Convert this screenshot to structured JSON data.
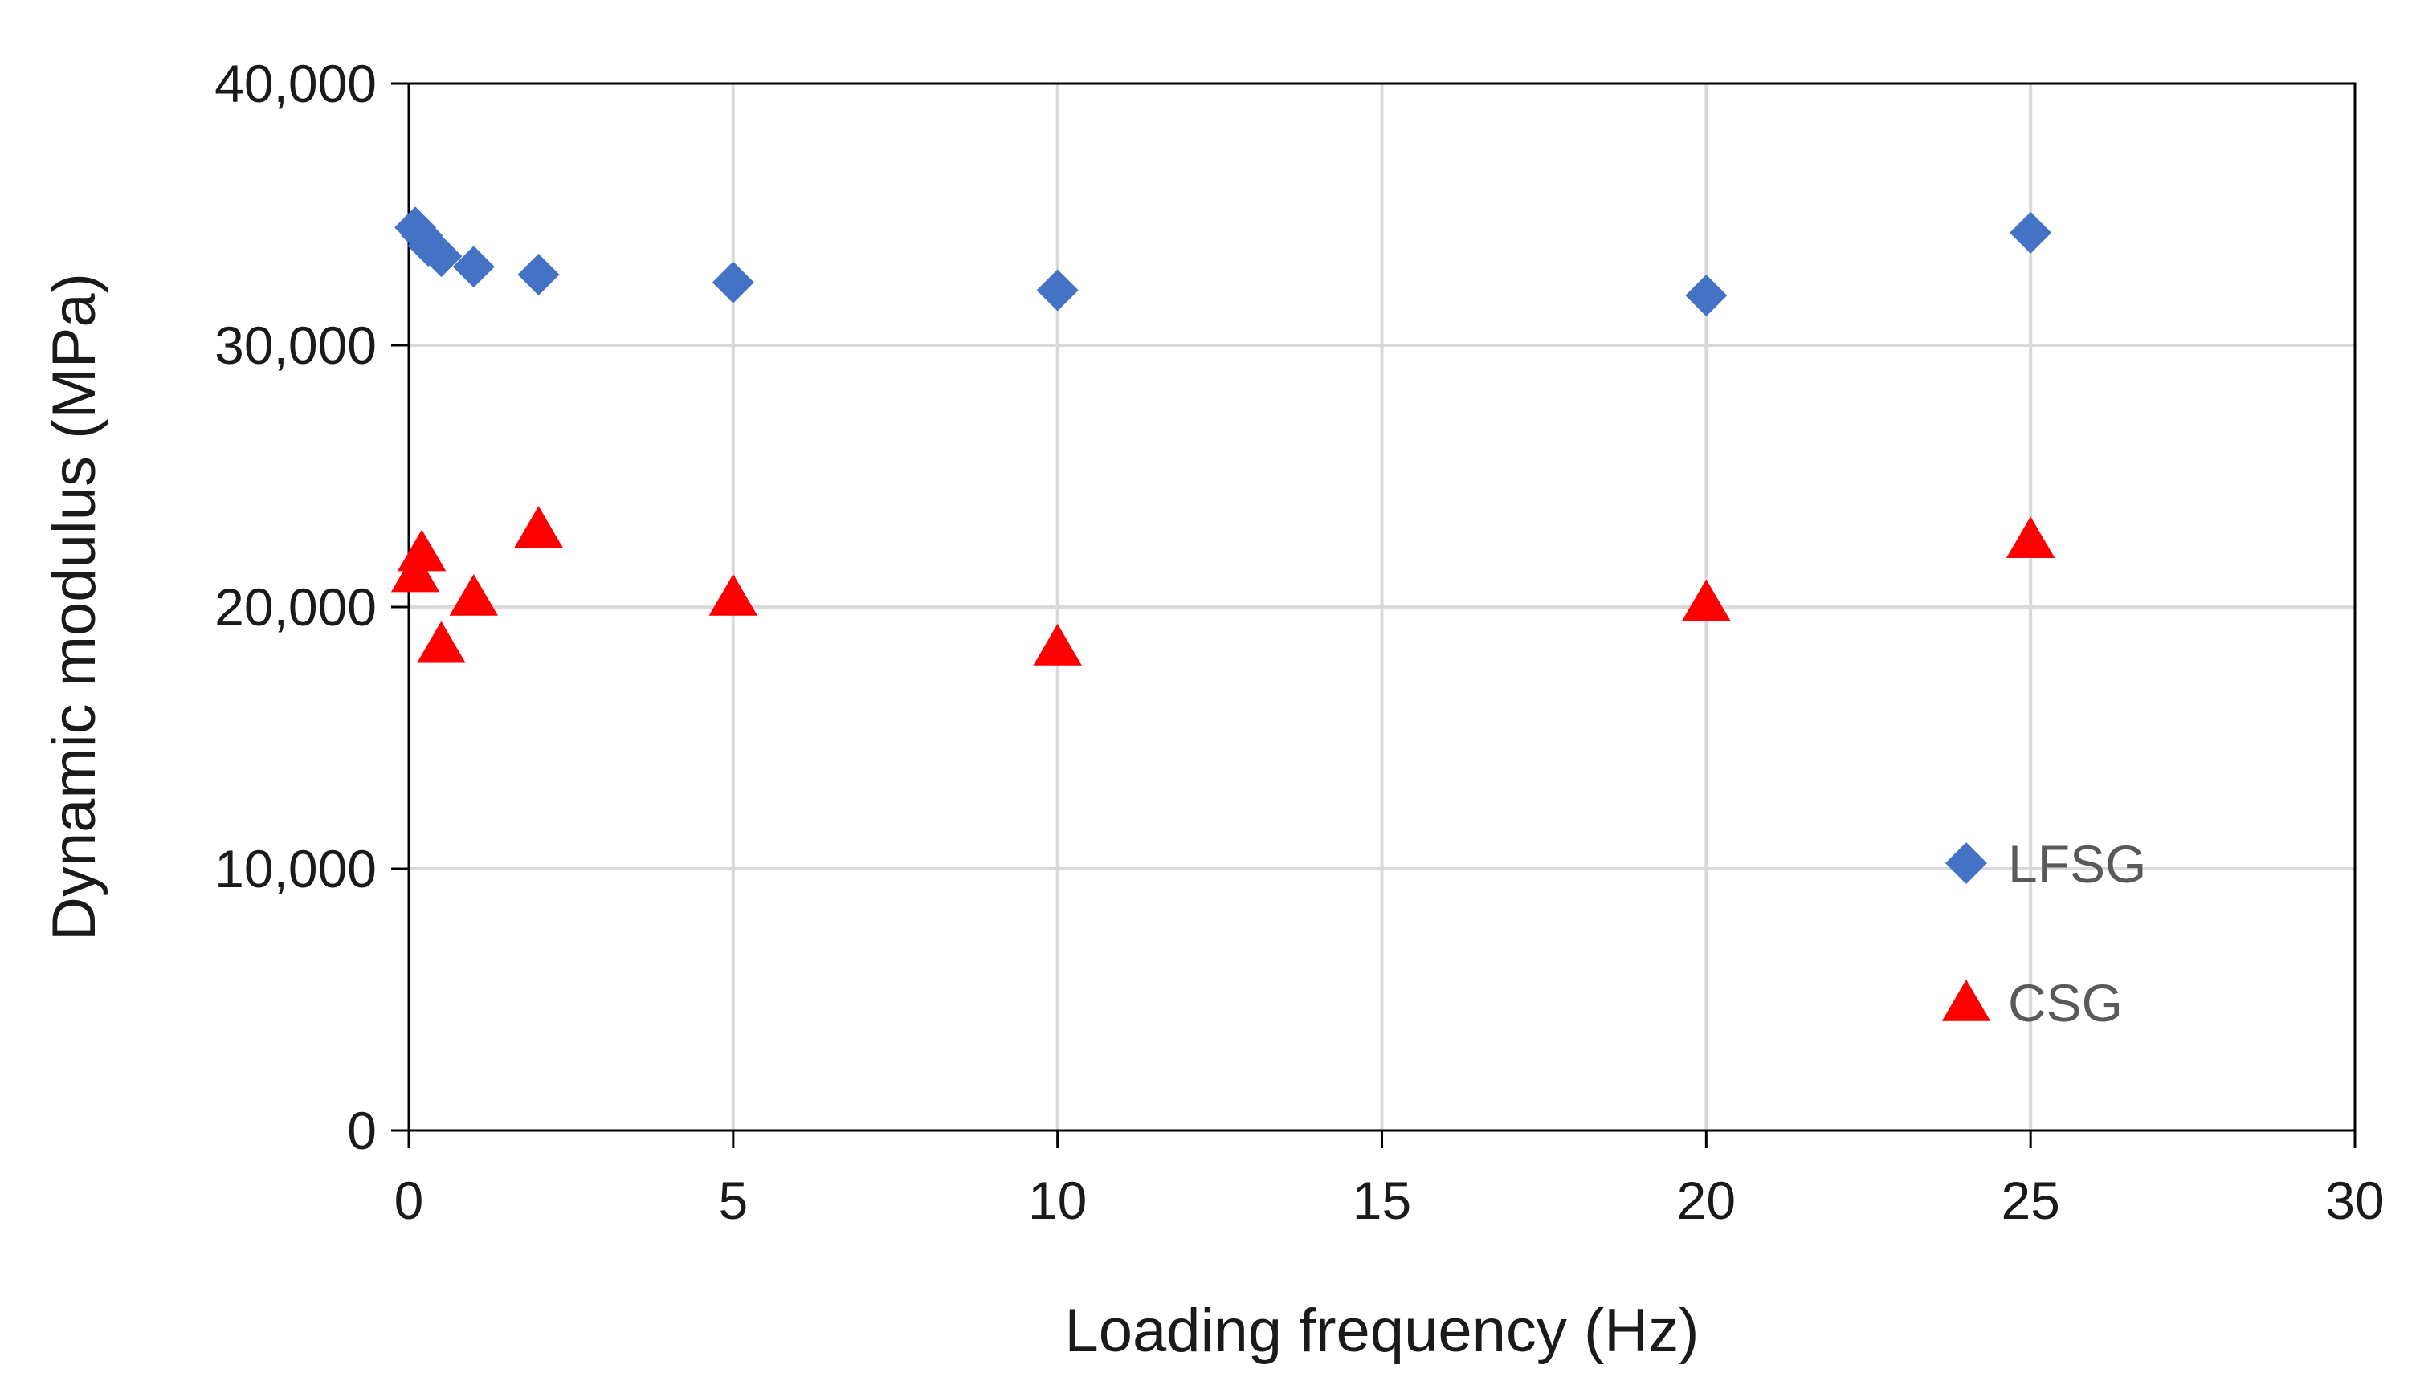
{
  "chart_data": {
    "type": "scatter",
    "xlabel": "Loading frequency (Hz)",
    "ylabel": "Dynamic modulus (MPa)",
    "xlim": [
      0,
      30
    ],
    "ylim": [
      0,
      40000
    ],
    "xticks": [
      0,
      5,
      10,
      15,
      20,
      25,
      30
    ],
    "yticks": [
      0,
      10000,
      20000,
      30000,
      40000
    ],
    "xtick_labels": [
      "0",
      "5",
      "10",
      "15",
      "20",
      "25",
      "30"
    ],
    "ytick_labels": [
      "0",
      "10,000",
      "20,000",
      "30,000",
      "40,000"
    ],
    "grid": true,
    "legend_position": "lower-right",
    "series": [
      {
        "name": "LFSG",
        "marker": "diamond",
        "color": "#4472C4",
        "points": [
          {
            "x": 0.1,
            "y": 34500
          },
          {
            "x": 0.2,
            "y": 34200
          },
          {
            "x": 0.3,
            "y": 33800
          },
          {
            "x": 0.5,
            "y": 33400
          },
          {
            "x": 1,
            "y": 33000
          },
          {
            "x": 2,
            "y": 32700
          },
          {
            "x": 5,
            "y": 32400
          },
          {
            "x": 10,
            "y": 32100
          },
          {
            "x": 20,
            "y": 31900
          },
          {
            "x": 25,
            "y": 34300
          }
        ]
      },
      {
        "name": "CSG",
        "marker": "triangle",
        "color": "#FF0000",
        "points": [
          {
            "x": 0.1,
            "y": 21300
          },
          {
            "x": 0.2,
            "y": 22100
          },
          {
            "x": 0.5,
            "y": 18600
          },
          {
            "x": 1,
            "y": 20400
          },
          {
            "x": 2,
            "y": 23000
          },
          {
            "x": 5,
            "y": 20400
          },
          {
            "x": 10,
            "y": 18500
          },
          {
            "x": 20,
            "y": 20200
          },
          {
            "x": 25,
            "y": 22600
          }
        ]
      }
    ]
  }
}
